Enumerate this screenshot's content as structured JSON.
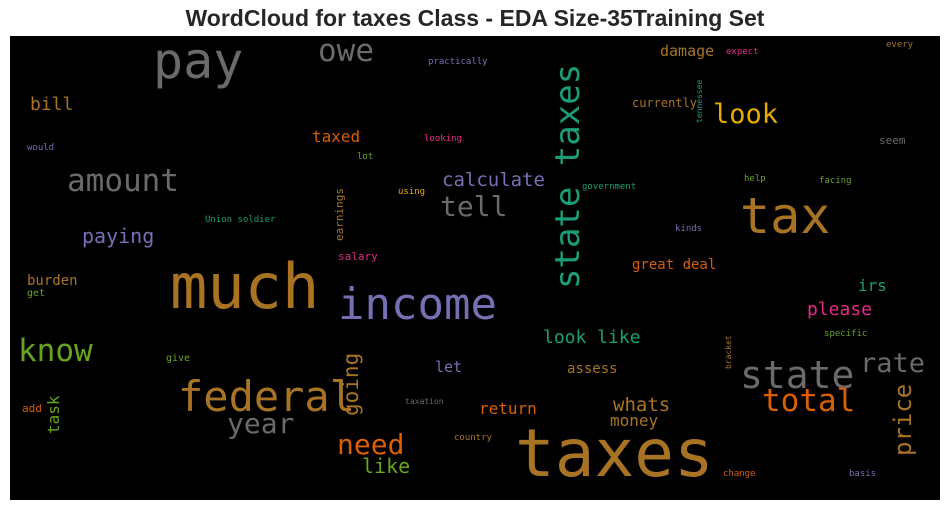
{
  "title": "WordCloud for taxes Class - EDA Size-35Training Set",
  "colors": {
    "background": "#000000",
    "palette": [
      "#a87424",
      "#6a6a6a",
      "#1b9e77",
      "#7570b3",
      "#d95f02",
      "#66a61e",
      "#e7298a",
      "#e6ab02",
      "#a6761d"
    ]
  },
  "words": {
    "taxes": "taxes",
    "much": "much",
    "tax": "tax",
    "pay": "pay",
    "income": "income",
    "federal": "federal",
    "state_taxes": "state taxes",
    "state": "state",
    "amount": "amount",
    "owe": "owe",
    "know": "know",
    "total": "total",
    "tell": "tell",
    "need": "need",
    "year": "year",
    "rate": "rate",
    "look": "look",
    "price": "price",
    "calculate": "calculate",
    "paying": "paying",
    "going": "going",
    "whats": "whats",
    "like": "like",
    "look_like": "look like",
    "please": "please",
    "bill": "bill",
    "taxed": "taxed",
    "irs": "irs",
    "return": "return",
    "money": "money",
    "great_deal": "great deal",
    "damage": "damage",
    "burden": "burden",
    "task": "task",
    "let": "let",
    "assess": "assess",
    "currently": "currently",
    "practically": "practically",
    "expect": "expect",
    "every": "every",
    "tennessee": "tennessee",
    "looking": "looking",
    "seem": "seem",
    "would": "would",
    "lot": "lot",
    "government": "government",
    "help": "help",
    "facing": "facing",
    "using": "using",
    "earnings": "earnings",
    "union_soldier": "Union soldier",
    "kinds": "kinds",
    "salary": "salary",
    "get": "get",
    "give": "give",
    "bracket": "bracket",
    "specific": "specific",
    "add": "add",
    "taxation": "taxation",
    "country": "country",
    "change": "change",
    "basis": "basis"
  }
}
